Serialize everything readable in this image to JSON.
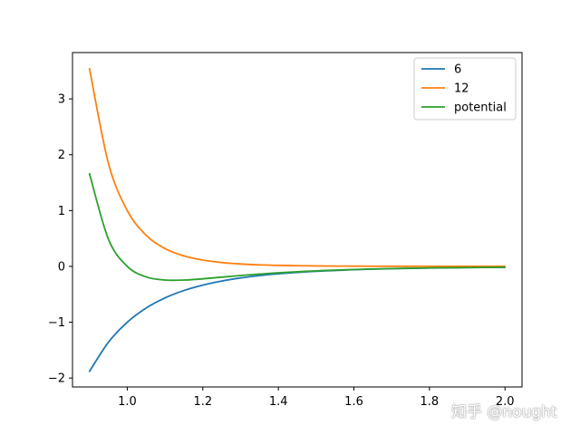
{
  "chart_data": {
    "type": "line",
    "title": "",
    "xlabel": "",
    "ylabel": "",
    "xlim": [
      0.855,
      2.045
    ],
    "ylim": [
      -2.16,
      3.83
    ],
    "x_ticks": [
      1.0,
      1.2,
      1.4,
      1.6,
      1.8,
      2.0
    ],
    "x_tick_labels": [
      "1.0",
      "1.2",
      "1.4",
      "1.6",
      "1.8",
      "2.0"
    ],
    "y_ticks": [
      -2,
      -1,
      0,
      1,
      2,
      3
    ],
    "y_tick_labels": [
      "−2",
      "−1",
      "0",
      "1",
      "2",
      "3"
    ],
    "legend_position": "top-right",
    "grid": false,
    "x": [
      0.9,
      0.95,
      1.0,
      1.05,
      1.1,
      1.15,
      1.2,
      1.25,
      1.3,
      1.35,
      1.4,
      1.5,
      1.6,
      1.7,
      1.8,
      1.9,
      2.0
    ],
    "series": [
      {
        "name": "6",
        "color": "#1f77b4",
        "values": [
          -1.88,
          -1.36,
          -1.0,
          -0.746,
          -0.564,
          -0.432,
          -0.335,
          -0.262,
          -0.207,
          -0.165,
          -0.133,
          -0.088,
          -0.06,
          -0.041,
          -0.029,
          -0.021,
          -0.016
        ]
      },
      {
        "name": "12",
        "color": "#ff7f0e",
        "values": [
          3.54,
          1.85,
          1.0,
          0.557,
          0.319,
          0.187,
          0.112,
          0.069,
          0.043,
          0.027,
          0.018,
          0.008,
          0.004,
          0.002,
          0.001,
          0.0,
          0.0
        ]
      },
      {
        "name": "potential",
        "color": "#2ca02c",
        "values": [
          1.66,
          0.49,
          0.0,
          -0.189,
          -0.245,
          -0.245,
          -0.223,
          -0.193,
          -0.164,
          -0.138,
          -0.115,
          -0.08,
          -0.056,
          -0.039,
          -0.028,
          -0.021,
          -0.016
        ]
      }
    ]
  },
  "watermark": "知乎 @nought"
}
